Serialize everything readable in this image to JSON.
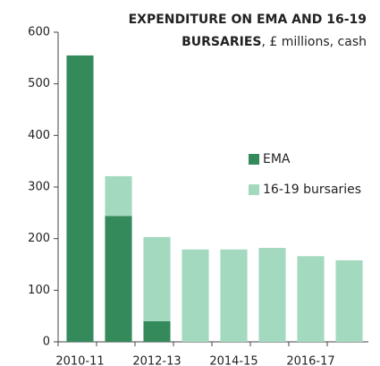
{
  "chart_data": {
    "type": "stacked_bar",
    "title": [
      "EXPENDITURE ON EMA AND 16-19",
      "BURSARIES"
    ],
    "subtitle": ", £ millions, cash",
    "categories": [
      "2010-11",
      null,
      "2012-13",
      null,
      "2014-15",
      null,
      "2016-17",
      null
    ],
    "series": [
      {
        "name": "EMA",
        "color": "#358a5c",
        "values": [
          555,
          244,
          40,
          0,
          0,
          0,
          0,
          0
        ]
      },
      {
        "name": "16-19 bursaries",
        "color": "#a3d9bf",
        "values": [
          0,
          77,
          163,
          179,
          179,
          182,
          166,
          158
        ]
      }
    ],
    "ylim": [
      0,
      600
    ],
    "yticks": [
      0,
      100,
      200,
      300,
      400,
      500,
      600
    ],
    "grid": false
  }
}
